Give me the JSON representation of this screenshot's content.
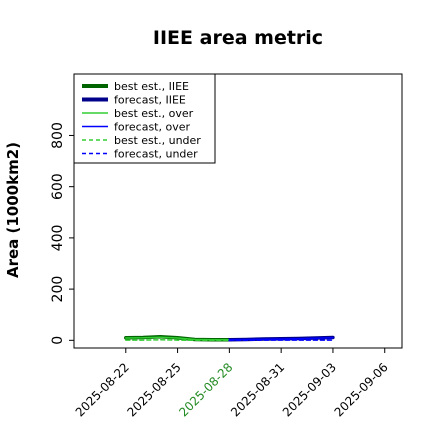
{
  "chart_data": {
    "type": "line",
    "title": "IIEE area metric",
    "ylabel": "Area (1000km2)",
    "xlabel": "",
    "x_ticks": [
      "2025-08-22",
      "2025-08-25",
      "2025-08-28",
      "2025-08-31",
      "2025-09-03",
      "2025-09-06"
    ],
    "highlight_tick": "2025-08-28",
    "y_ticks": [
      0,
      200,
      400,
      600,
      800
    ],
    "ylim": [
      -30,
      1040
    ],
    "xlim": [
      "2025-08-19",
      "2025-09-07"
    ],
    "grid": false,
    "legend_position": "top-left",
    "series": [
      {
        "name": "best est., IIEE",
        "color": "#006400",
        "style": "solid",
        "width": "thick",
        "x": [
          "2025-08-22",
          "2025-08-23",
          "2025-08-24",
          "2025-08-25",
          "2025-08-26",
          "2025-08-27",
          "2025-08-28"
        ],
        "y": [
          10,
          11,
          14,
          10,
          3,
          2,
          2
        ]
      },
      {
        "name": "forecast, IIEE",
        "color": "#00008b",
        "style": "solid",
        "width": "thick",
        "x": [
          "2025-08-28",
          "2025-08-29",
          "2025-08-30",
          "2025-08-31",
          "2025-09-01",
          "2025-09-02",
          "2025-09-03"
        ],
        "y": [
          2,
          3,
          5,
          6,
          7,
          9,
          11
        ]
      },
      {
        "name": "best est., over",
        "color": "#32cd32",
        "style": "solid",
        "width": "thin",
        "x": [
          "2025-08-22",
          "2025-08-23",
          "2025-08-24",
          "2025-08-25",
          "2025-08-26",
          "2025-08-27",
          "2025-08-28"
        ],
        "y": [
          9,
          10,
          12,
          9,
          3,
          2,
          2
        ]
      },
      {
        "name": "forecast, over",
        "color": "#0000ff",
        "style": "solid",
        "width": "thin",
        "x": [
          "2025-08-28",
          "2025-08-29",
          "2025-08-30",
          "2025-08-31",
          "2025-09-01",
          "2025-09-02",
          "2025-09-03"
        ],
        "y": [
          2,
          3,
          4,
          5,
          6,
          8,
          10
        ]
      },
      {
        "name": "best est., under",
        "color": "#32cd32",
        "style": "dashed",
        "width": "thin",
        "x": [
          "2025-08-22",
          "2025-08-23",
          "2025-08-24",
          "2025-08-25",
          "2025-08-26",
          "2025-08-27",
          "2025-08-28"
        ],
        "y": [
          1,
          1,
          2,
          1,
          0,
          0,
          0
        ]
      },
      {
        "name": "forecast, under",
        "color": "#0000ff",
        "style": "dashed",
        "width": "thin",
        "x": [
          "2025-08-28",
          "2025-08-29",
          "2025-08-30",
          "2025-08-31",
          "2025-09-01",
          "2025-09-02",
          "2025-09-03"
        ],
        "y": [
          0,
          0,
          1,
          1,
          1,
          1,
          1
        ]
      }
    ]
  }
}
